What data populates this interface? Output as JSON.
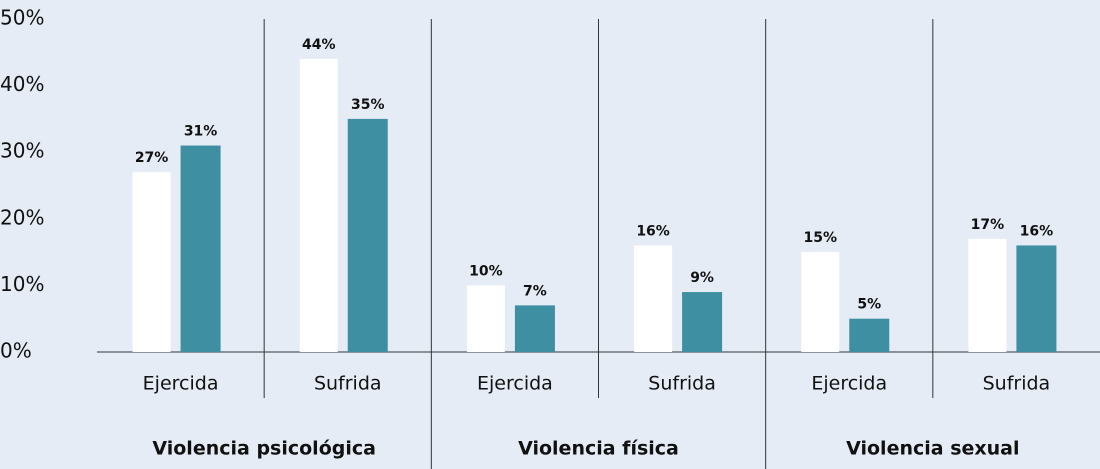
{
  "chart_data": {
    "type": "bar",
    "groups": [
      "Violencia psicológica",
      "Violencia física",
      "Violencia sexual"
    ],
    "categories": [
      "Ejercida",
      "Sufrida",
      "Ejercida",
      "Sufrida",
      "Ejercida",
      "Sufrida"
    ],
    "series": [
      {
        "color": "#ffffff",
        "values": [
          27,
          44,
          10,
          16,
          15,
          17
        ],
        "value_labels": [
          "27%",
          "44%",
          "10%",
          "16%",
          "15%",
          "17%"
        ]
      },
      {
        "color": "#3d8fa1",
        "values": [
          31,
          35,
          7,
          9,
          5,
          16
        ],
        "value_labels": [
          "31%",
          "35%",
          "7%",
          "9%",
          "5%",
          "16%"
        ]
      }
    ],
    "ylim": [
      0,
      50
    ],
    "yticks": [
      {
        "value": 0,
        "label": "0%"
      },
      {
        "value": 10,
        "label": "10%"
      },
      {
        "value": 20,
        "label": "20%"
      },
      {
        "value": 30,
        "label": "30%"
      },
      {
        "value": 40,
        "label": "40%"
      },
      {
        "value": 50,
        "label": "50%"
      }
    ]
  }
}
